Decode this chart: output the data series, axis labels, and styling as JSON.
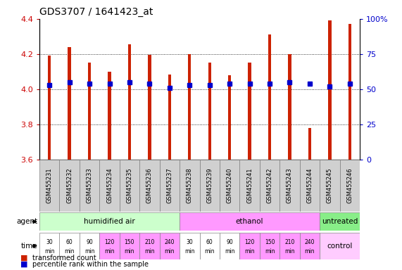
{
  "title": "GDS3707 / 1641423_at",
  "samples": [
    "GSM455231",
    "GSM455232",
    "GSM455233",
    "GSM455234",
    "GSM455235",
    "GSM455236",
    "GSM455237",
    "GSM455238",
    "GSM455239",
    "GSM455240",
    "GSM455241",
    "GSM455242",
    "GSM455243",
    "GSM455244",
    "GSM455245",
    "GSM455246"
  ],
  "red_values": [
    4.19,
    4.24,
    4.15,
    4.1,
    4.255,
    4.197,
    4.085,
    4.2,
    4.15,
    4.08,
    4.15,
    4.31,
    4.2,
    3.78,
    4.39,
    4.37
  ],
  "blue_percentiles": [
    53,
    55,
    54,
    54,
    55,
    54,
    51,
    53,
    53,
    54,
    54,
    54,
    55,
    54,
    52,
    54
  ],
  "ylim": [
    3.6,
    4.4
  ],
  "y2lim": [
    0,
    100
  ],
  "yticks": [
    3.6,
    3.8,
    4.0,
    4.2,
    4.4
  ],
  "y2ticks": [
    0,
    25,
    50,
    75,
    100
  ],
  "y2labels": [
    "0",
    "25",
    "50",
    "75",
    "100%"
  ],
  "dotted_lines": [
    3.8,
    4.0,
    4.2
  ],
  "agent_groups": [
    {
      "label": "humidified air",
      "start": 0,
      "end": 7,
      "color": "#ccffcc"
    },
    {
      "label": "ethanol",
      "start": 7,
      "end": 14,
      "color": "#ff99ff"
    },
    {
      "label": "untreated",
      "start": 14,
      "end": 16,
      "color": "#88ee88"
    }
  ],
  "time_labels": [
    "30",
    "60",
    "90",
    "120",
    "150",
    "210",
    "240",
    "30",
    "60",
    "90",
    "120",
    "150",
    "210",
    "240",
    "",
    ""
  ],
  "time_bgs": [
    "#ffffff",
    "#ffffff",
    "#ffffff",
    "#ff99ff",
    "#ff99ff",
    "#ff99ff",
    "#ff99ff",
    "#ffffff",
    "#ffffff",
    "#ffffff",
    "#ff99ff",
    "#ff99ff",
    "#ff99ff",
    "#ff99ff",
    "#ffccff",
    "#ffccff"
  ],
  "control_label": "control",
  "bar_color": "#cc2200",
  "blue_color": "#0000cc",
  "bar_width": 0.15,
  "label_color_red": "#cc0000",
  "label_color_blue": "#0000cc",
  "tick_fontsize": 8,
  "sample_fontsize": 6,
  "title_fontsize": 10
}
